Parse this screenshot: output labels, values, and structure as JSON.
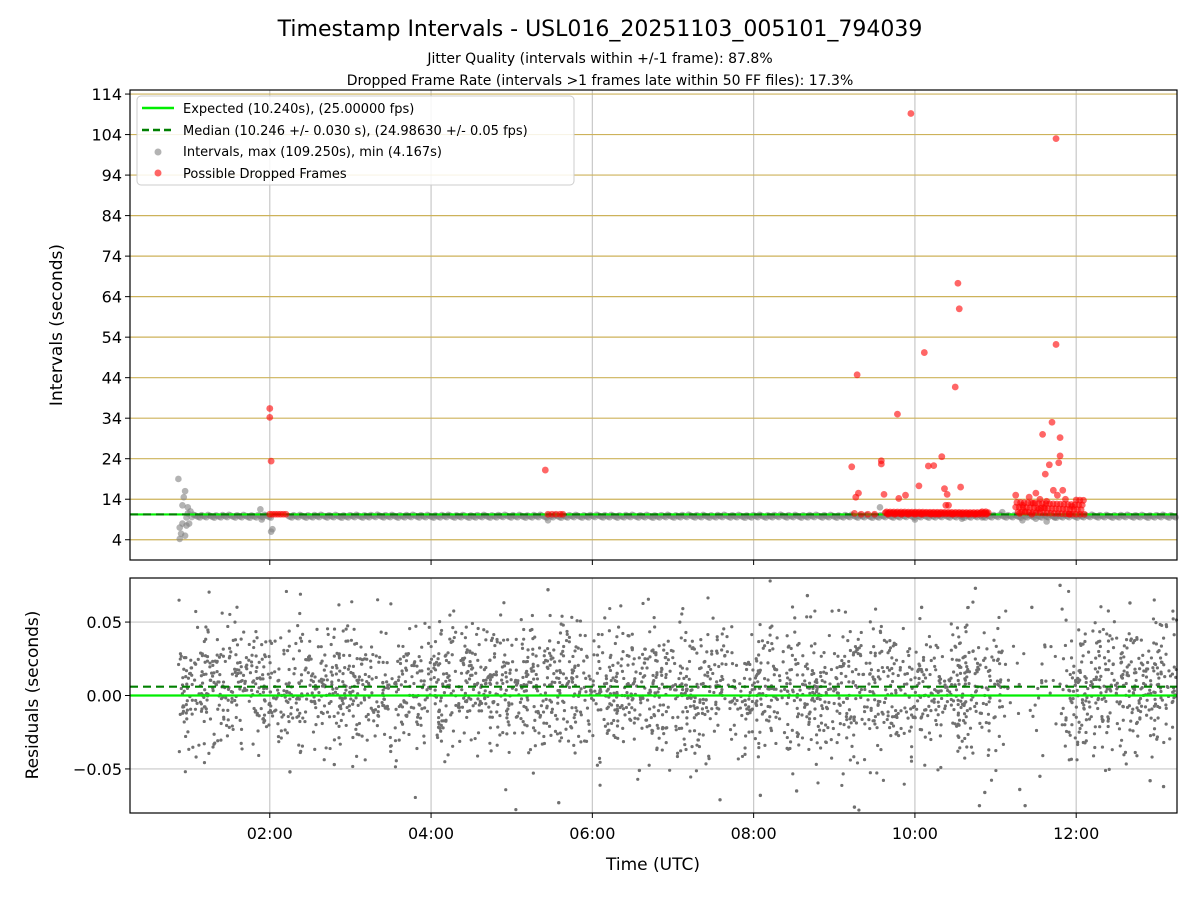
{
  "chart_data": [
    {
      "type": "scatter",
      "title": "Timestamp Intervals - USL016_20251103_005101_794039",
      "subtitle_lines": [
        "Jitter Quality (intervals within +/-1 frame): 87.8%",
        "Dropped Frame Rate (intervals >1 frames late within 50 FF files): 17.3%"
      ],
      "xlabel": "",
      "ylabel": "Intervals (seconds)",
      "xlim": [
        "00:16",
        "13:15"
      ],
      "ylim": [
        -1,
        115
      ],
      "y_ticks": [
        4,
        14,
        24,
        34,
        44,
        54,
        64,
        74,
        84,
        94,
        104,
        114
      ],
      "x_ticks": [
        "02:00",
        "04:00",
        "06:00",
        "08:00",
        "10:00",
        "12:00"
      ],
      "grid": "on",
      "legend_placement": "upper-left",
      "reference_lines": [
        {
          "label": "Expected (10.240s), (25.00000 fps)",
          "y": 10.24,
          "style": "solid",
          "color": "#00ee00"
        },
        {
          "label": "Median (10.246 +/- 0.030 s), (24.98630 +/- 0.05 fps)",
          "y": 10.246,
          "style": "dashed",
          "color": "#008000"
        }
      ],
      "series": [
        {
          "name": "Intervals, max (109.250s), min (4.167s)",
          "color": "#808080",
          "points": [
            [
              "00:52",
              19
            ],
            [
              "00:53",
              7
            ],
            [
              "00:53",
              4.2
            ],
            [
              "00:54",
              5.5
            ],
            [
              "00:55",
              12.5
            ],
            [
              "00:56",
              14.5
            ],
            [
              "00:57",
              16
            ],
            [
              "00:58",
              7.5
            ],
            [
              "00:58",
              9.5
            ],
            [
              "00:59",
              12
            ],
            [
              "00:59",
              10.5
            ],
            [
              "01:00",
              8
            ],
            [
              "01:01",
              11
            ],
            [
              "00:55",
              8
            ],
            [
              "00:57",
              5
            ],
            [
              "01:53",
              11.5
            ],
            [
              "01:54",
              9
            ],
            [
              "02:01",
              6
            ],
            [
              "02:02",
              6.6
            ],
            [
              "05:27",
              8.8
            ],
            [
              "09:34",
              12
            ],
            [
              "10:00",
              9
            ],
            [
              "10:35",
              9.2
            ],
            [
              "10:50",
              9.5
            ],
            [
              "11:05",
              10.8
            ],
            [
              "11:20",
              8.8
            ],
            [
              "11:30",
              9.2
            ],
            [
              "11:38",
              8.5
            ],
            [
              "11:44",
              9.5
            ]
          ]
        },
        {
          "name": "Possible Dropped Frames",
          "color": "#ff0000",
          "points": [
            [
              "02:00",
              36.4
            ],
            [
              "02:00",
              34.2
            ],
            [
              "02:01",
              23.4
            ],
            [
              "02:00",
              10.3
            ],
            [
              "02:02",
              10.3
            ],
            [
              "02:04",
              10.3
            ],
            [
              "02:06",
              10.3
            ],
            [
              "02:08",
              10.3
            ],
            [
              "02:10",
              10.3
            ],
            [
              "02:12",
              10.3
            ],
            [
              "05:25",
              21.2
            ],
            [
              "05:27",
              10.3
            ],
            [
              "05:30",
              10.3
            ],
            [
              "05:33",
              10.3
            ],
            [
              "05:36",
              10.3
            ],
            [
              "05:38",
              10.3
            ],
            [
              "09:13",
              22
            ],
            [
              "09:15",
              10.5
            ],
            [
              "09:16",
              14.5
            ],
            [
              "09:17",
              44.7
            ],
            [
              "09:18",
              15.5
            ],
            [
              "09:20",
              10.3
            ],
            [
              "09:25",
              10.3
            ],
            [
              "09:30",
              10.3
            ],
            [
              "09:35",
              23.5
            ],
            [
              "09:35",
              22.7
            ],
            [
              "09:37",
              15.2
            ],
            [
              "09:40",
              10.3
            ],
            [
              "09:45",
              10.3
            ],
            [
              "09:47",
              35
            ],
            [
              "09:48",
              14.2
            ],
            [
              "09:50",
              10.3
            ],
            [
              "09:53",
              15
            ],
            [
              "09:55",
              10.3
            ],
            [
              "09:57",
              109.2
            ],
            [
              "10:00",
              10.3
            ],
            [
              "10:03",
              17.3
            ],
            [
              "10:05",
              10.3
            ],
            [
              "10:07",
              50.2
            ],
            [
              "10:10",
              22.2
            ],
            [
              "10:12",
              10.3
            ],
            [
              "10:14",
              22.3
            ],
            [
              "10:15",
              10.3
            ],
            [
              "10:18",
              10.3
            ],
            [
              "10:20",
              24.5
            ],
            [
              "10:22",
              16.6
            ],
            [
              "10:23",
              12.5
            ],
            [
              "10:24",
              15.2
            ],
            [
              "10:25",
              12.5
            ],
            [
              "10:28",
              10.3
            ],
            [
              "10:30",
              41.7
            ],
            [
              "10:32",
              67.3
            ],
            [
              "10:33",
              61
            ],
            [
              "10:34",
              17
            ],
            [
              "10:35",
              10.3
            ],
            [
              "10:40",
              10.3
            ],
            [
              "10:45",
              10.3
            ],
            [
              "10:50",
              10.3
            ],
            [
              "10:53",
              10.3
            ],
            [
              "11:15",
              15
            ],
            [
              "11:18",
              10.5
            ],
            [
              "11:20",
              12.5
            ],
            [
              "11:22",
              11
            ],
            [
              "11:25",
              14.5
            ],
            [
              "11:27",
              10.3
            ],
            [
              "11:28",
              13
            ],
            [
              "11:30",
              15.5
            ],
            [
              "11:32",
              11.5
            ],
            [
              "11:33",
              14
            ],
            [
              "11:35",
              30
            ],
            [
              "11:36",
              12
            ],
            [
              "11:37",
              20.2
            ],
            [
              "11:38",
              13.5
            ],
            [
              "11:40",
              22.5
            ],
            [
              "11:42",
              33
            ],
            [
              "11:43",
              16.2
            ],
            [
              "11:45",
              103
            ],
            [
              "11:45",
              52.2
            ],
            [
              "11:46",
              15
            ],
            [
              "11:47",
              23
            ],
            [
              "11:48",
              24.7
            ],
            [
              "11:48",
              29.2
            ],
            [
              "11:50",
              16.2
            ],
            [
              "11:52",
              14
            ],
            [
              "11:55",
              10.3
            ],
            [
              "11:57",
              12.2
            ],
            [
              "12:00",
              10.3
            ],
            [
              "12:03",
              10.3
            ],
            [
              "12:06",
              10.3
            ]
          ]
        }
      ]
    },
    {
      "type": "scatter",
      "title": "",
      "xlabel": "Time (UTC)",
      "ylabel": "Residuals (seconds)",
      "xlim": [
        "00:16",
        "13:15"
      ],
      "ylim": [
        -0.08,
        0.08
      ],
      "y_ticks": [
        0.05,
        0.0,
        -0.05
      ],
      "y_tick_labels": [
        "0.05",
        "0.00",
        "−0.05"
      ],
      "x_ticks": [
        "02:00",
        "04:00",
        "06:00",
        "08:00",
        "10:00",
        "12:00"
      ],
      "x_tick_labels": [
        "02:00",
        "04:00",
        "06:00",
        "08:00",
        "10:00",
        "12:00"
      ],
      "grid": "on",
      "reference_lines": [
        {
          "y": 0.0,
          "style": "solid",
          "color": "#00ee00"
        },
        {
          "y": 0.006,
          "style": "dashed",
          "color": "#008000"
        }
      ],
      "residual_cloud": {
        "color": "#707070",
        "x_range": [
          "00:52",
          "13:15"
        ],
        "gaps": [
          [
            "11:05",
            "11:50"
          ]
        ],
        "spread_std": 0.022,
        "center": 0.005,
        "outliers": [
          [
            "02:15",
            -0.052
          ],
          [
            "02:48",
            -0.047
          ],
          [
            "05:27",
            0.072
          ],
          [
            "05:35",
            -0.073
          ],
          [
            "06:35",
            -0.051
          ],
          [
            "07:35",
            -0.071
          ],
          [
            "08:05",
            -0.068
          ],
          [
            "08:32",
            -0.065
          ],
          [
            "08:40",
            0.068
          ],
          [
            "09:15",
            -0.076
          ],
          [
            "10:05",
            0.06
          ],
          [
            "10:45",
            0.073
          ],
          [
            "10:48",
            -0.075
          ],
          [
            "10:52",
            -0.066
          ],
          [
            "11:18",
            -0.064
          ],
          [
            "11:22",
            -0.075
          ],
          [
            "11:27",
            0.06
          ],
          [
            "11:33",
            -0.055
          ],
          [
            "11:48",
            0.075
          ],
          [
            "12:40",
            0.063
          ],
          [
            "12:55",
            -0.058
          ],
          [
            "13:05",
            -0.062
          ]
        ]
      }
    }
  ]
}
